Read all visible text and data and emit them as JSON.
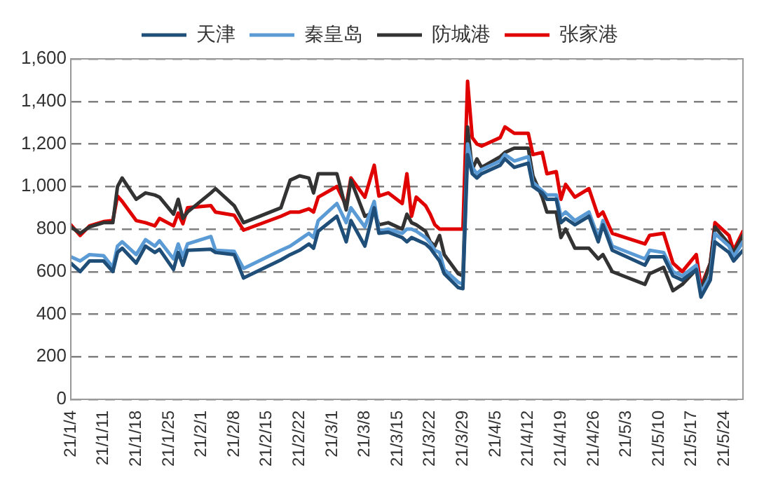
{
  "chart_data": {
    "type": "line",
    "x": [
      "--01-04",
      "--01-06",
      "--01-08",
      "--01-11",
      "--01-13",
      "--01-14",
      "--01-15",
      "--01-18",
      "--01-20",
      "--01-22",
      "--01-23",
      "--01-26",
      "--01-27",
      "--01-28",
      "--01-29",
      "--02-03",
      "--02-04",
      "--02-08",
      "--02-10",
      "--02-18",
      "--02-20",
      "--02-22",
      "--02-24",
      "--02-25",
      "--02-26",
      "--03-02",
      "--03-04",
      "--03-05",
      "--03-08",
      "--03-10",
      "--03-11",
      "--03-13",
      "--03-16",
      "--03-17",
      "--03-18",
      "--03-19",
      "--03-21",
      "--03-22",
      "--03-23",
      "--03-24",
      "--03-25",
      "--03-28",
      "--03-29",
      "--03-30",
      "--03-31",
      "--04-01",
      "--04-02",
      "--04-06",
      "--04-07",
      "--04-09",
      "--04-12",
      "--04-13",
      "--04-15",
      "--04-16",
      "--04-18",
      "--04-19",
      "--04-20",
      "--04-22",
      "--04-25",
      "--04-27",
      "--04-28",
      "--04-30",
      "--05-07",
      "--05-08",
      "--05-11",
      "--05-13",
      "--05-15",
      "--05-18",
      "--05-19",
      "--05-21",
      "--05-22",
      "--05-25",
      "--05-26",
      "--05-28"
    ],
    "series": [
      {
        "name": "天津",
        "color": "#1f4e79",
        "values": [
          640,
          600,
          650,
          650,
          600,
          690,
          710,
          640,
          720,
          690,
          705,
          610,
          690,
          630,
          700,
          705,
          690,
          680,
          570,
          655,
          680,
          700,
          730,
          710,
          790,
          860,
          740,
          840,
          720,
          900,
          780,
          785,
          760,
          740,
          760,
          750,
          730,
          710,
          680,
          650,
          590,
          525,
          520,
          1150,
          1060,
          1040,
          1060,
          1100,
          1130,
          1090,
          1110,
          1000,
          970,
          940,
          940,
          830,
          850,
          820,
          860,
          740,
          820,
          700,
          630,
          670,
          670,
          580,
          560,
          610,
          480,
          560,
          740,
          690,
          650,
          700
        ]
      },
      {
        "name": "秦皇岛",
        "color": "#5b9bd5",
        "values": [
          670,
          650,
          680,
          675,
          620,
          720,
          740,
          680,
          750,
          720,
          745,
          660,
          730,
          670,
          730,
          765,
          700,
          695,
          615,
          700,
          720,
          750,
          780,
          760,
          840,
          920,
          830,
          900,
          810,
          930,
          790,
          800,
          780,
          800,
          800,
          790,
          760,
          735,
          700,
          690,
          610,
          550,
          540,
          1200,
          1090,
          1060,
          1080,
          1120,
          1150,
          1120,
          1140,
          1020,
          980,
          960,
          960,
          860,
          880,
          840,
          880,
          760,
          840,
          720,
          660,
          700,
          690,
          600,
          580,
          630,
          500,
          580,
          780,
          720,
          670,
          740
        ]
      },
      {
        "name": "防城港",
        "color": "#333333",
        "values": [
          810,
          780,
          810,
          830,
          830,
          1000,
          1040,
          940,
          970,
          960,
          950,
          870,
          940,
          850,
          880,
          970,
          990,
          910,
          830,
          900,
          1030,
          1050,
          1040,
          970,
          1060,
          1060,
          890,
          1030,
          860,
          880,
          820,
          830,
          800,
          870,
          830,
          820,
          790,
          740,
          720,
          770,
          680,
          590,
          580,
          1280,
          1080,
          1130,
          1090,
          1140,
          1160,
          1180,
          1180,
          1050,
          950,
          880,
          880,
          760,
          800,
          710,
          710,
          660,
          680,
          600,
          540,
          590,
          620,
          510,
          540,
          610,
          510,
          640,
          810,
          730,
          690,
          770
        ]
      },
      {
        "name": "张家港",
        "color": "#e00000",
        "values": [
          820,
          770,
          815,
          835,
          840,
          955,
          930,
          840,
          830,
          815,
          850,
          815,
          875,
          825,
          900,
          910,
          880,
          865,
          795,
          860,
          880,
          880,
          895,
          880,
          950,
          1000,
          910,
          1040,
          950,
          1100,
          955,
          970,
          920,
          1060,
          860,
          950,
          910,
          870,
          820,
          800,
          800,
          800,
          800,
          1495,
          1230,
          1200,
          1190,
          1230,
          1280,
          1250,
          1250,
          1150,
          1160,
          1060,
          1070,
          940,
          1010,
          950,
          990,
          860,
          880,
          780,
          730,
          770,
          780,
          640,
          600,
          680,
          530,
          640,
          830,
          770,
          700,
          790
        ]
      }
    ],
    "xlim": [
      "--01-04",
      "--05-28"
    ],
    "xticks": [
      {
        "value": "--01-04",
        "label": "21/1/4"
      },
      {
        "value": "--01-11",
        "label": "21/1/11"
      },
      {
        "value": "--01-18",
        "label": "21/1/18"
      },
      {
        "value": "--01-25",
        "label": "21/1/25"
      },
      {
        "value": "--02-01",
        "label": "21/2/1"
      },
      {
        "value": "--02-08",
        "label": "21/2/8"
      },
      {
        "value": "--02-15",
        "label": "21/2/15"
      },
      {
        "value": "--02-22",
        "label": "21/2/22"
      },
      {
        "value": "--03-01",
        "label": "21/3/1"
      },
      {
        "value": "--03-08",
        "label": "21/3/8"
      },
      {
        "value": "--03-15",
        "label": "21/3/15"
      },
      {
        "value": "--03-22",
        "label": "21/3/22"
      },
      {
        "value": "--03-29",
        "label": "21/3/29"
      },
      {
        "value": "--04-05",
        "label": "21/4/5"
      },
      {
        "value": "--04-12",
        "label": "21/4/12"
      },
      {
        "value": "--04-19",
        "label": "21/4/19"
      },
      {
        "value": "--04-26",
        "label": "21/4/26"
      },
      {
        "value": "--05-03",
        "label": "21/5/3"
      },
      {
        "value": "--05-10",
        "label": "21/5/10"
      },
      {
        "value": "--05-17",
        "label": "21/5/17"
      },
      {
        "value": "--05-24",
        "label": "21/5/24"
      }
    ],
    "ylim": [
      0,
      1600
    ],
    "yticks": [
      0,
      200,
      400,
      600,
      800,
      {
        "value": 1000,
        "label": "1,000"
      },
      {
        "value": 1200,
        "label": "1,200"
      },
      {
        "value": 1400,
        "label": "1,400"
      },
      {
        "value": 1600,
        "label": "1,600"
      }
    ],
    "grid": "y",
    "legend": "top",
    "marker": "none",
    "line_style": "solid"
  }
}
